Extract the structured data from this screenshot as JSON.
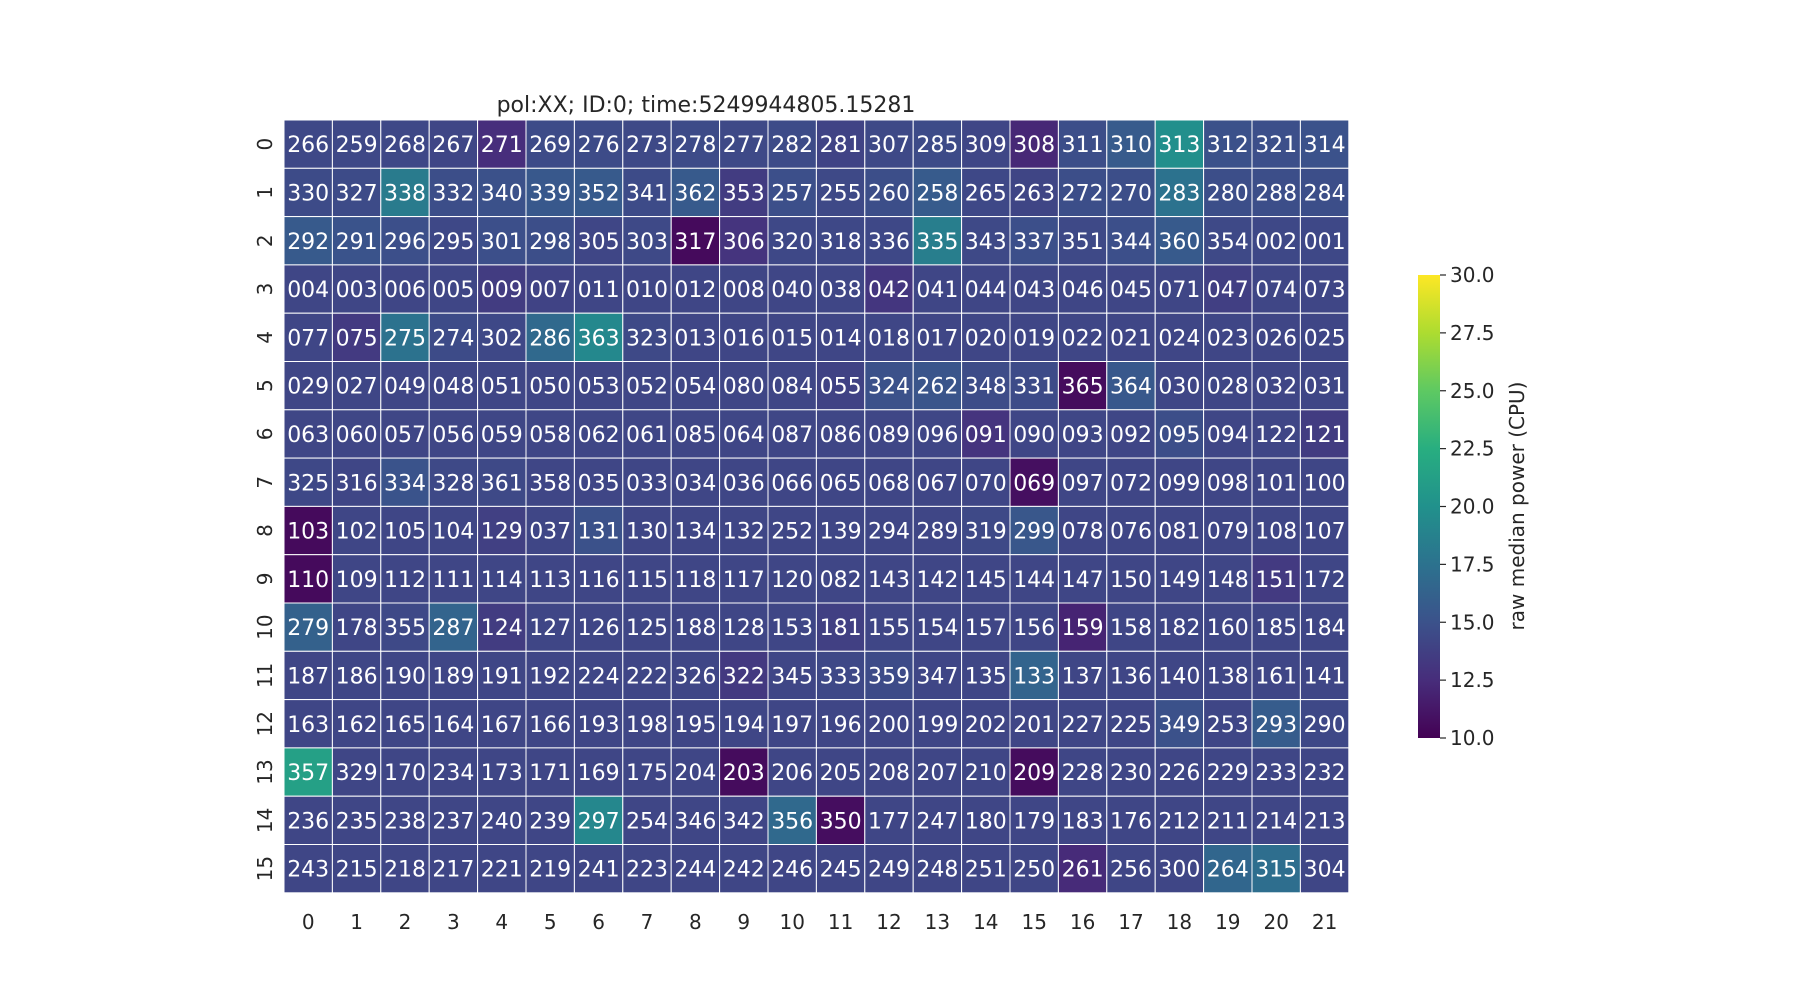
{
  "chart_data": {
    "type": "heatmap",
    "title": "pol:XX; ID:0; time:5249944805.15281",
    "xlabel": "",
    "ylabel": "",
    "x_tick_labels": [
      "0",
      "1",
      "2",
      "3",
      "4",
      "5",
      "6",
      "7",
      "8",
      "9",
      "10",
      "11",
      "12",
      "13",
      "14",
      "15",
      "16",
      "17",
      "18",
      "19",
      "20",
      "21"
    ],
    "y_tick_labels": [
      "0",
      "1",
      "2",
      "3",
      "4",
      "5",
      "6",
      "7",
      "8",
      "9",
      "10",
      "11",
      "12",
      "13",
      "14",
      "15"
    ],
    "colormap": "viridis",
    "colorbar": {
      "label": "raw median power (CPU)",
      "vmin": 10.0,
      "vmax": 30.0,
      "ticks": [
        "10.0",
        "12.5",
        "15.0",
        "17.5",
        "20.0",
        "22.5",
        "25.0",
        "27.5",
        "30.0"
      ]
    },
    "annotations": [
      [
        "266",
        "259",
        "268",
        "267",
        "271",
        "269",
        "276",
        "273",
        "278",
        "277",
        "282",
        "281",
        "307",
        "285",
        "309",
        "308",
        "311",
        "310",
        "313",
        "312",
        "321",
        "314"
      ],
      [
        "330",
        "327",
        "338",
        "332",
        "340",
        "339",
        "352",
        "341",
        "362",
        "353",
        "257",
        "255",
        "260",
        "258",
        "265",
        "263",
        "272",
        "270",
        "283",
        "280",
        "288",
        "284"
      ],
      [
        "292",
        "291",
        "296",
        "295",
        "301",
        "298",
        "305",
        "303",
        "317",
        "306",
        "320",
        "318",
        "336",
        "335",
        "343",
        "337",
        "351",
        "344",
        "360",
        "354",
        "002",
        "001"
      ],
      [
        "004",
        "003",
        "006",
        "005",
        "009",
        "007",
        "011",
        "010",
        "012",
        "008",
        "040",
        "038",
        "042",
        "041",
        "044",
        "043",
        "046",
        "045",
        "071",
        "047",
        "074",
        "073"
      ],
      [
        "077",
        "075",
        "275",
        "274",
        "302",
        "286",
        "363",
        "323",
        "013",
        "016",
        "015",
        "014",
        "018",
        "017",
        "020",
        "019",
        "022",
        "021",
        "024",
        "023",
        "026",
        "025"
      ],
      [
        "029",
        "027",
        "049",
        "048",
        "051",
        "050",
        "053",
        "052",
        "054",
        "080",
        "084",
        "055",
        "324",
        "262",
        "348",
        "331",
        "365",
        "364",
        "030",
        "028",
        "032",
        "031"
      ],
      [
        "063",
        "060",
        "057",
        "056",
        "059",
        "058",
        "062",
        "061",
        "085",
        "064",
        "087",
        "086",
        "089",
        "096",
        "091",
        "090",
        "093",
        "092",
        "095",
        "094",
        "122",
        "121"
      ],
      [
        "325",
        "316",
        "334",
        "328",
        "361",
        "358",
        "035",
        "033",
        "034",
        "036",
        "066",
        "065",
        "068",
        "067",
        "070",
        "069",
        "097",
        "072",
        "099",
        "098",
        "101",
        "100"
      ],
      [
        "103",
        "102",
        "105",
        "104",
        "129",
        "037",
        "131",
        "130",
        "134",
        "132",
        "252",
        "139",
        "294",
        "289",
        "319",
        "299",
        "078",
        "076",
        "081",
        "079",
        "108",
        "107"
      ],
      [
        "110",
        "109",
        "112",
        "111",
        "114",
        "113",
        "116",
        "115",
        "118",
        "117",
        "120",
        "082",
        "143",
        "142",
        "145",
        "144",
        "147",
        "150",
        "149",
        "148",
        "151",
        "172"
      ],
      [
        "279",
        "178",
        "355",
        "287",
        "124",
        "127",
        "126",
        "125",
        "188",
        "128",
        "153",
        "181",
        "155",
        "154",
        "157",
        "156",
        "159",
        "158",
        "182",
        "160",
        "185",
        "184"
      ],
      [
        "187",
        "186",
        "190",
        "189",
        "191",
        "192",
        "224",
        "222",
        "326",
        "322",
        "345",
        "333",
        "359",
        "347",
        "135",
        "133",
        "137",
        "136",
        "140",
        "138",
        "161",
        "141"
      ],
      [
        "163",
        "162",
        "165",
        "164",
        "167",
        "166",
        "193",
        "198",
        "195",
        "194",
        "197",
        "196",
        "200",
        "199",
        "202",
        "201",
        "227",
        "225",
        "349",
        "253",
        "293",
        "290"
      ],
      [
        "357",
        "329",
        "170",
        "234",
        "173",
        "171",
        "169",
        "175",
        "204",
        "203",
        "206",
        "205",
        "208",
        "207",
        "210",
        "209",
        "228",
        "230",
        "226",
        "229",
        "233",
        "232"
      ],
      [
        "236",
        "235",
        "238",
        "237",
        "240",
        "239",
        "297",
        "254",
        "346",
        "342",
        "356",
        "350",
        "177",
        "247",
        "180",
        "179",
        "183",
        "176",
        "212",
        "211",
        "214",
        "213"
      ],
      [
        "243",
        "215",
        "218",
        "217",
        "221",
        "219",
        "241",
        "223",
        "244",
        "242",
        "246",
        "245",
        "249",
        "248",
        "251",
        "250",
        "261",
        "256",
        "300",
        "264",
        "315",
        "304"
      ]
    ],
    "values": [
      [
        14.3,
        14.3,
        14.3,
        14.2,
        12.6,
        14.5,
        14.5,
        14.4,
        14.5,
        14.4,
        14.5,
        14.0,
        14.4,
        14.5,
        14.2,
        12.2,
        14.7,
        15.7,
        19.8,
        14.9,
        14.8,
        15.0
      ],
      [
        14.5,
        14.5,
        18.2,
        14.7,
        14.9,
        15.5,
        15.6,
        14.5,
        15.6,
        13.5,
        14.8,
        14.4,
        14.7,
        15.7,
        14.3,
        14.1,
        14.7,
        14.7,
        17.5,
        14.7,
        14.7,
        14.7
      ],
      [
        15.6,
        15.1,
        14.8,
        14.3,
        14.8,
        14.7,
        14.2,
        14.4,
        10.5,
        13.0,
        14.3,
        14.3,
        14.3,
        18.5,
        14.4,
        14.8,
        14.4,
        14.8,
        15.6,
        14.4,
        14.3,
        14.3
      ],
      [
        14.2,
        14.2,
        14.2,
        14.2,
        13.5,
        14.0,
        14.2,
        14.2,
        14.2,
        14.2,
        14.2,
        14.2,
        13.1,
        14.2,
        14.2,
        14.2,
        14.2,
        14.2,
        14.2,
        13.7,
        14.2,
        14.2
      ],
      [
        14.2,
        13.4,
        17.5,
        14.5,
        14.3,
        16.8,
        19.3,
        14.4,
        14.2,
        14.2,
        14.2,
        14.2,
        14.2,
        14.2,
        14.2,
        14.2,
        14.2,
        14.2,
        14.2,
        14.2,
        14.2,
        14.2
      ],
      [
        14.2,
        14.2,
        14.2,
        14.2,
        14.2,
        14.2,
        14.2,
        14.2,
        14.2,
        14.2,
        14.2,
        13.9,
        14.9,
        15.2,
        14.6,
        14.5,
        10.6,
        15.5,
        14.2,
        14.2,
        14.2,
        14.2
      ],
      [
        14.2,
        14.2,
        14.2,
        14.2,
        14.2,
        14.2,
        14.2,
        14.2,
        14.2,
        14.2,
        14.2,
        14.2,
        14.2,
        14.2,
        13.0,
        14.2,
        14.2,
        14.2,
        14.7,
        14.2,
        14.2,
        13.5
      ],
      [
        14.3,
        14.2,
        15.1,
        14.4,
        14.4,
        14.2,
        14.2,
        14.2,
        14.2,
        14.2,
        14.2,
        14.2,
        14.2,
        14.2,
        14.2,
        10.8,
        14.2,
        14.2,
        14.2,
        14.2,
        14.2,
        14.2
      ],
      [
        10.5,
        14.2,
        14.2,
        14.2,
        13.8,
        14.2,
        14.9,
        14.2,
        14.2,
        14.2,
        14.2,
        14.2,
        14.2,
        14.2,
        14.4,
        15.4,
        14.2,
        14.2,
        14.2,
        14.2,
        14.2,
        14.2
      ],
      [
        10.5,
        14.2,
        14.2,
        14.2,
        14.2,
        14.2,
        14.2,
        14.2,
        14.2,
        14.2,
        14.2,
        14.2,
        14.2,
        14.2,
        14.2,
        14.2,
        14.2,
        14.2,
        14.2,
        14.2,
        13.4,
        14.2
      ],
      [
        16.2,
        14.2,
        14.4,
        16.4,
        13.5,
        14.2,
        14.2,
        14.2,
        14.2,
        14.2,
        14.2,
        13.8,
        14.2,
        14.2,
        14.2,
        14.2,
        12.0,
        14.2,
        14.2,
        14.2,
        14.2,
        14.2
      ],
      [
        14.2,
        14.2,
        14.2,
        14.2,
        14.2,
        14.2,
        14.2,
        14.2,
        14.2,
        13.3,
        14.2,
        14.3,
        14.5,
        14.2,
        14.2,
        16.4,
        14.2,
        14.2,
        14.2,
        14.2,
        14.2,
        14.2
      ],
      [
        14.2,
        14.2,
        14.2,
        14.2,
        14.2,
        14.2,
        14.2,
        14.2,
        14.2,
        14.2,
        14.2,
        14.2,
        14.2,
        14.2,
        14.2,
        14.2,
        14.2,
        14.2,
        14.9,
        14.2,
        15.8,
        14.3
      ],
      [
        21.3,
        14.2,
        14.2,
        14.2,
        14.2,
        14.2,
        14.2,
        14.2,
        14.2,
        10.6,
        14.2,
        14.2,
        14.2,
        14.2,
        14.2,
        10.6,
        14.2,
        14.2,
        14.2,
        14.2,
        14.2,
        14.2
      ],
      [
        14.2,
        14.2,
        14.2,
        14.2,
        14.2,
        14.2,
        19.2,
        14.2,
        14.2,
        14.2,
        16.8,
        10.7,
        14.2,
        14.2,
        14.2,
        14.2,
        14.2,
        14.2,
        14.2,
        14.2,
        14.2,
        14.2
      ],
      [
        14.2,
        14.2,
        14.2,
        14.2,
        14.2,
        14.2,
        14.2,
        14.2,
        14.2,
        14.2,
        14.2,
        14.2,
        14.2,
        14.2,
        14.2,
        14.2,
        12.4,
        14.2,
        14.2,
        16.6,
        17.2,
        14.2
      ]
    ]
  }
}
